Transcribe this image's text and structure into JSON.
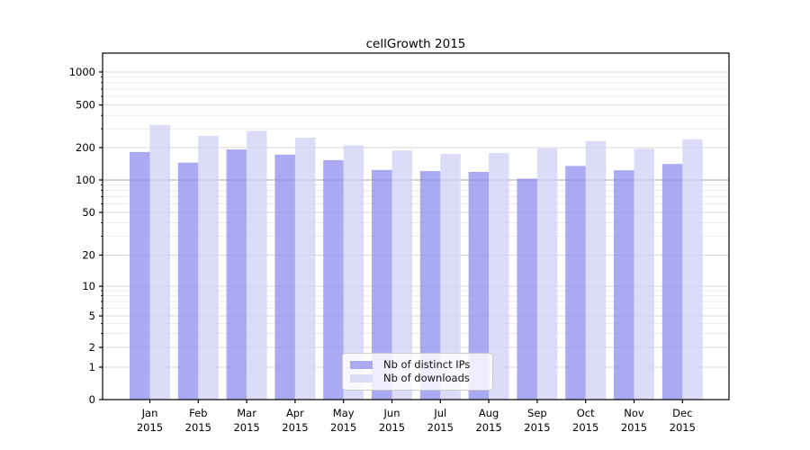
{
  "chart_data": {
    "type": "bar",
    "title": "cellGrowth 2015",
    "categories": [
      "Jan",
      "Feb",
      "Mar",
      "Apr",
      "May",
      "Jun",
      "Jul",
      "Aug",
      "Sep",
      "Oct",
      "Nov",
      "Dec"
    ],
    "category_year": "2015",
    "series": [
      {
        "name": "Nb of distinct IPs",
        "values": [
          182,
          145,
          192,
          172,
          153,
          124,
          121,
          119,
          103,
          135,
          123,
          141
        ],
        "display_color": "#aaaaf2",
        "fill_color": "#8989ee"
      },
      {
        "name": "Nb of downloads",
        "values": [
          327,
          258,
          287,
          248,
          210,
          188,
          175,
          178,
          197,
          230,
          195,
          239
        ],
        "display_color": "#dcdcf8",
        "fill_color": "#cecef5"
      }
    ],
    "xlabel": "",
    "ylabel": "",
    "yscale": "symlog",
    "ylim": [
      0,
      1500
    ],
    "yticks": [
      0,
      1,
      2,
      5,
      10,
      20,
      50,
      100,
      200,
      500,
      1000
    ],
    "y_minor_ticks": [
      3,
      4,
      6,
      7,
      8,
      9,
      30,
      40,
      60,
      70,
      80,
      90,
      300,
      400,
      600,
      700,
      800,
      900
    ],
    "grid": true,
    "legend_position": "lower center",
    "bar_opacity": 0.72,
    "colors": {
      "grid_minor": "#ececec",
      "grid_major": "#d9d9d9",
      "grid_emphasis": "#a9a9a9",
      "axis": "#000000",
      "background": "#ffffff"
    },
    "emphasized_gridline_value": 100
  }
}
